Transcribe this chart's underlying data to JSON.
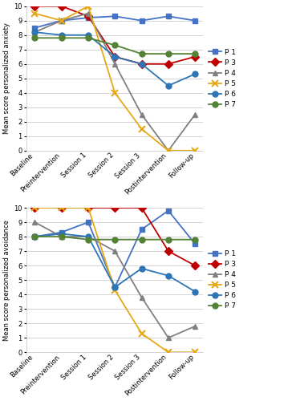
{
  "x_labels": [
    "Baseline",
    "Preintervention",
    "Session 1",
    "Session 2",
    "Session 3",
    "Postintervention",
    "Follow-up"
  ],
  "anxiety": {
    "P1": [
      8.5,
      9.0,
      9.2,
      9.3,
      9.0,
      9.3,
      9.0
    ],
    "P3": [
      10.0,
      10.0,
      9.3,
      6.5,
      6.0,
      6.0,
      6.5
    ],
    "P4": [
      8.2,
      9.0,
      9.5,
      6.0,
      2.5,
      0.0,
      2.5
    ],
    "P5": [
      9.5,
      9.0,
      10.0,
      4.0,
      1.5,
      0.0,
      0.0
    ],
    "P6": [
      8.2,
      8.0,
      8.0,
      6.5,
      6.0,
      4.5,
      5.3
    ],
    "P7": [
      7.8,
      7.8,
      7.8,
      7.3,
      6.7,
      6.7,
      6.7
    ]
  },
  "avoidance": {
    "P1": [
      8.0,
      8.3,
      9.0,
      4.5,
      8.5,
      9.8,
      7.5
    ],
    "P3": [
      10.0,
      10.0,
      10.0,
      10.0,
      10.0,
      7.0,
      6.0
    ],
    "P4": [
      9.0,
      8.0,
      8.0,
      7.0,
      3.8,
      1.0,
      1.8
    ],
    "P5": [
      10.0,
      10.0,
      10.0,
      4.3,
      1.3,
      0.0,
      0.0
    ],
    "P6": [
      8.0,
      8.2,
      8.0,
      4.5,
      5.8,
      5.3,
      4.2
    ],
    "P7": [
      8.0,
      8.0,
      7.8,
      7.8,
      7.8,
      7.8,
      7.8
    ]
  },
  "colors": {
    "P1": "#4472C4",
    "P3": "#C00000",
    "P4": "#808080",
    "P5": "#E6A817",
    "P6": "#2E75B6",
    "P7": "#548235"
  },
  "markers": {
    "P1": "s",
    "P3": "D",
    "P4": "^",
    "P5": "x",
    "P6": "o",
    "P7": "o"
  },
  "markersize": {
    "P1": 5,
    "P3": 5,
    "P4": 5,
    "P5": 6,
    "P6": 5,
    "P7": 5
  },
  "ylabel_top": "Mean score personalized anxiety",
  "ylabel_bottom": "Mean score personalized avoidance",
  "ylim": [
    0,
    10
  ],
  "yticks": [
    0,
    1,
    2,
    3,
    4,
    5,
    6,
    7,
    8,
    9,
    10
  ]
}
